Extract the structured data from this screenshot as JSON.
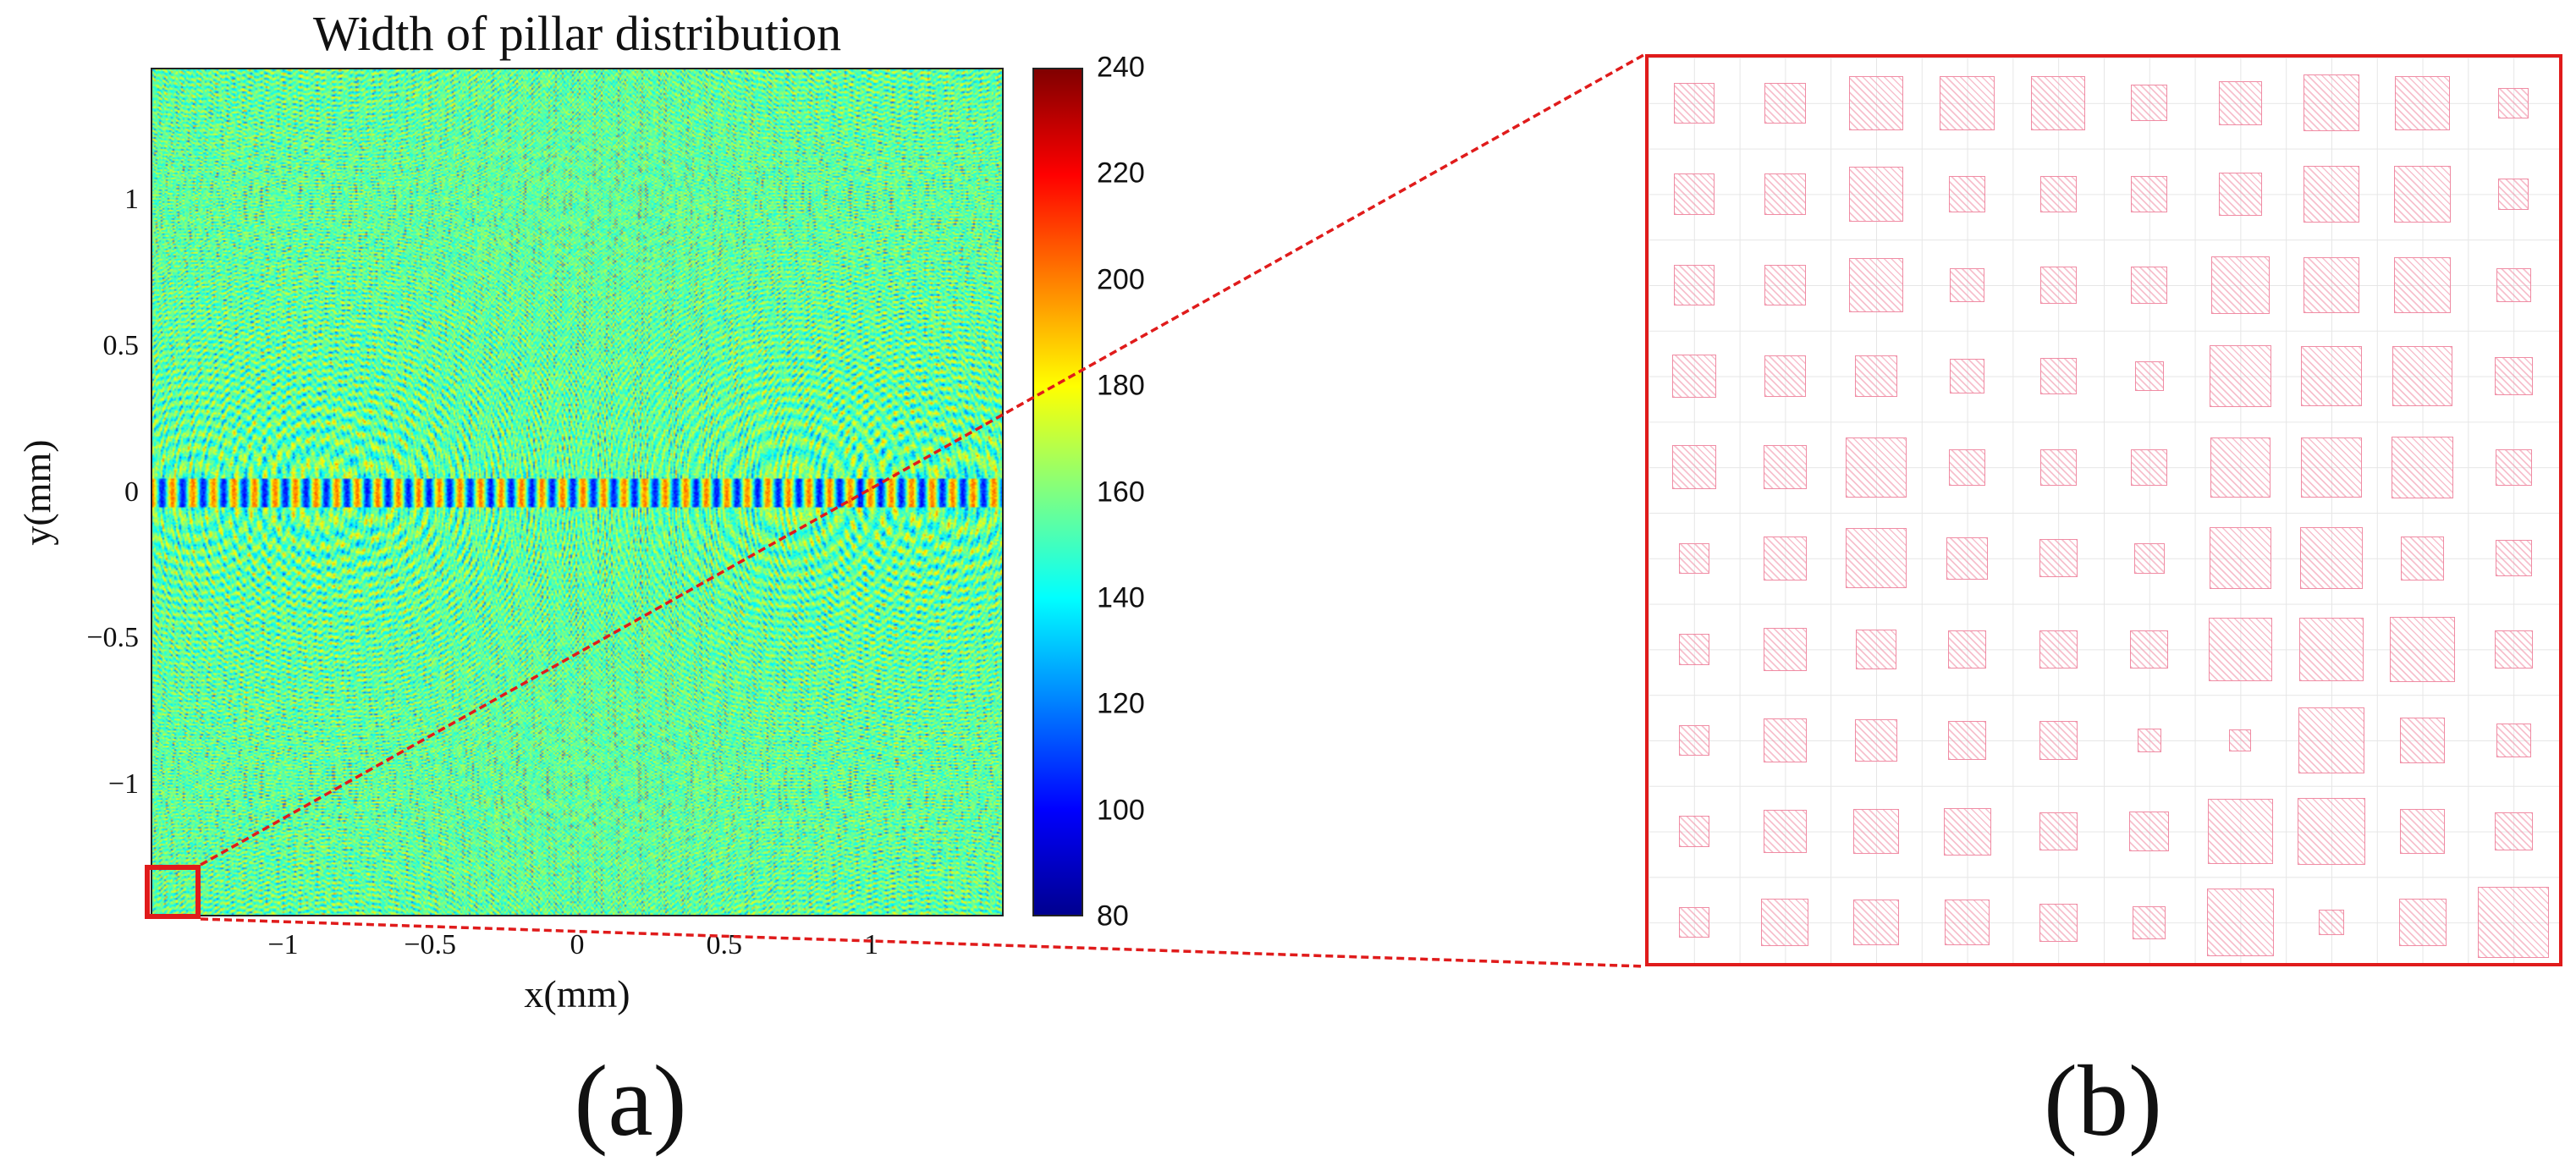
{
  "panel_labels": {
    "a": "(a)",
    "b": "(b)"
  },
  "chart_data": [
    {
      "type": "heatmap",
      "title": "Width of pillar distribution",
      "xlabel": "x(mm)",
      "ylabel": "y(mm)",
      "xlim": [
        -1.45,
        1.45
      ],
      "ylim": [
        -1.45,
        1.45
      ],
      "x_ticks": [
        "−1",
        "−0.5",
        "0",
        "0.5",
        "1"
      ],
      "x_tick_values": [
        -1,
        -0.5,
        0,
        0.5,
        1
      ],
      "y_ticks": [
        "1",
        "0.5",
        "0",
        "−0.5",
        "−1"
      ],
      "y_tick_values": [
        1,
        0.5,
        0,
        -0.5,
        -1
      ],
      "colormap": "jet",
      "colorbar": {
        "min": 80,
        "max": 240,
        "tick_values": [
          80,
          100,
          120,
          140,
          160,
          180,
          200,
          220,
          240
        ],
        "tick_labels": [
          "80",
          "100",
          "120",
          "140",
          "160",
          "180",
          "200",
          "220",
          "240"
        ]
      },
      "focal_centers_mm": [
        [
          -1.3,
          0
        ],
        [
          -0.7,
          0
        ],
        [
          1.15,
          0
        ]
      ],
      "highlighted_region_mm": {
        "x": [
          -1.45,
          -1.25
        ],
        "y": [
          -1.45,
          -1.25
        ]
      },
      "highlight_color": "#e01b1b"
    },
    {
      "type": "heatmap",
      "description_label": "zoomed pillar layout",
      "grid_columns": 10,
      "grid_rows": 10,
      "pillar_color": "#f08ca4",
      "border_color": "#e01b1b",
      "pillar_widths_relative": [
        [
          0.45,
          0.45,
          0.6,
          0.6,
          0.6,
          0.4,
          0.48,
          0.62,
          0.6,
          0.34
        ],
        [
          0.45,
          0.45,
          0.6,
          0.4,
          0.4,
          0.4,
          0.48,
          0.62,
          0.62,
          0.34
        ],
        [
          0.45,
          0.45,
          0.6,
          0.38,
          0.4,
          0.4,
          0.64,
          0.62,
          0.62,
          0.38
        ],
        [
          0.48,
          0.45,
          0.46,
          0.38,
          0.4,
          0.32,
          0.68,
          0.66,
          0.66,
          0.42
        ],
        [
          0.48,
          0.48,
          0.66,
          0.4,
          0.4,
          0.4,
          0.66,
          0.66,
          0.68,
          0.4
        ],
        [
          0.34,
          0.48,
          0.66,
          0.46,
          0.42,
          0.34,
          0.68,
          0.68,
          0.48,
          0.4
        ],
        [
          0.34,
          0.48,
          0.44,
          0.42,
          0.42,
          0.42,
          0.7,
          0.7,
          0.72,
          0.42
        ],
        [
          0.34,
          0.48,
          0.46,
          0.42,
          0.42,
          0.26,
          0.24,
          0.72,
          0.5,
          0.38
        ],
        [
          0.34,
          0.48,
          0.5,
          0.52,
          0.42,
          0.44,
          0.72,
          0.74,
          0.5,
          0.42
        ],
        [
          0.34,
          0.52,
          0.5,
          0.5,
          0.42,
          0.36,
          0.74,
          0.28,
          0.52,
          0.78
        ]
      ]
    }
  ]
}
